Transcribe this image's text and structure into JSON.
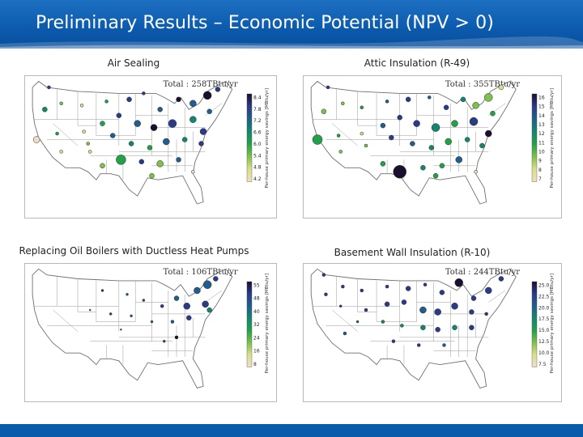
{
  "slide": {
    "title": "Preliminary Results – Economic Potential (NPV > 0)",
    "colors": {
      "header": "#0b5aad",
      "footer": "#0a5cab"
    }
  },
  "maps": [
    {
      "id": "air-sealing",
      "title": "Air Sealing",
      "total": "Total : 258TBtu/yr",
      "colorbar_label": "Per-house primary energy savings [MBtu/yr]",
      "colorbar_ticks": [
        "8.4",
        "7.8",
        "7.2",
        "6.6",
        "6.0",
        "5.4",
        "4.8",
        "4.2"
      ],
      "palette": [
        "#f3dcc2",
        "#d8e08a",
        "#7ec04a",
        "#23a149",
        "#13866f",
        "#1f5e8d",
        "#2c3b87",
        "#1a0f2c"
      ]
    },
    {
      "id": "attic-insulation",
      "title": "Attic Insulation (R-49)",
      "total": "Total : 355TBtu/yr",
      "colorbar_label": "Per-house primary energy savings [MBtu/yr]",
      "colorbar_ticks": [
        "16",
        "15",
        "14",
        "13",
        "12",
        "11",
        "10",
        "9",
        "8",
        "7"
      ],
      "palette": [
        "#f3dcc2",
        "#d8e08a",
        "#7ec04a",
        "#23a149",
        "#13866f",
        "#1f5e8d",
        "#2c3b87",
        "#1a0f2c"
      ]
    },
    {
      "id": "oil-boilers",
      "title": "Replacing Oil Boilers with Ductless Heat Pumps",
      "total": "Total : 106TBtu/yr",
      "colorbar_label": "Per-house primary energy savings [MBtu/yr]",
      "colorbar_ticks": [
        "55",
        "48",
        "40",
        "32",
        "24",
        "16",
        "8"
      ],
      "palette": [
        "#f3dcc2",
        "#d8e08a",
        "#7ec04a",
        "#23a149",
        "#13866f",
        "#1f5e8d",
        "#2c3b87",
        "#1a0f2c"
      ]
    },
    {
      "id": "basement-wall",
      "title": "Basement Wall Insulation (R-10)",
      "total": "Total : 244TBtu/yr",
      "colorbar_label": "Per-house primary energy savings [MBtu/yr]",
      "colorbar_ticks": [
        "25.0",
        "22.5",
        "20.0",
        "17.5",
        "15.0",
        "12.5",
        "10.0",
        "7.5"
      ],
      "palette": [
        "#f3dcc2",
        "#d8e08a",
        "#7ec04a",
        "#23a149",
        "#13866f",
        "#1f5e8d",
        "#2c3b87",
        "#1a0f2c"
      ]
    }
  ]
}
